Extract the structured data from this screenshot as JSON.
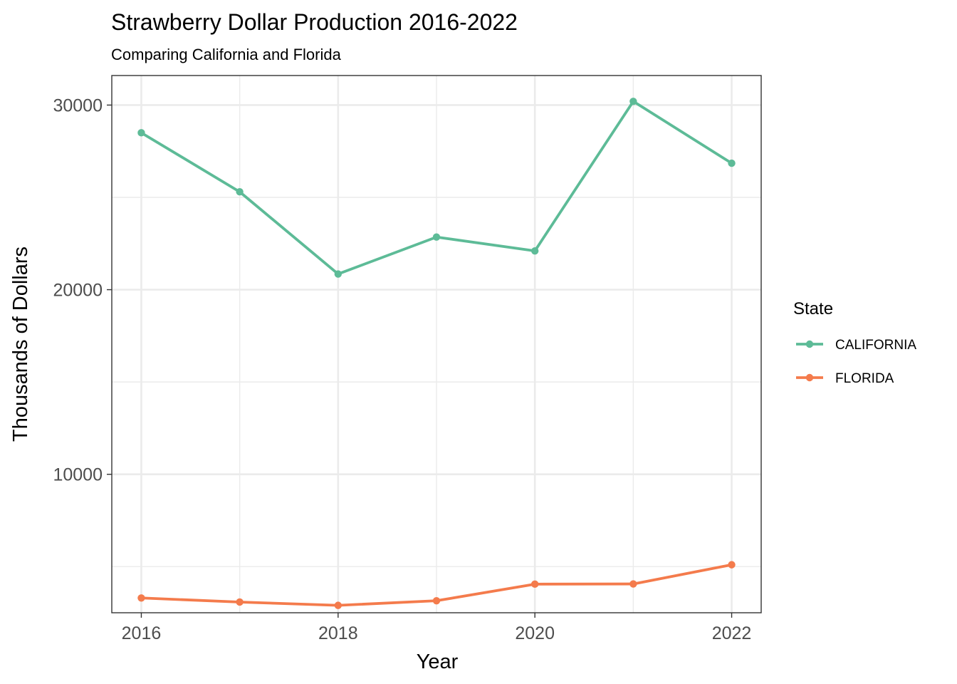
{
  "chart_data": {
    "type": "line",
    "title": "Strawberry Dollar Production 2016-2022",
    "subtitle": "Comparing California and Florida",
    "xlabel": "Year",
    "ylabel": "Thousands of Dollars",
    "x": [
      2016,
      2017,
      2018,
      2019,
      2020,
      2021,
      2022
    ],
    "x_ticks": [
      "2016",
      "2018",
      "2020",
      "2022"
    ],
    "y_ticks": [
      "10000",
      "20000",
      "30000"
    ],
    "xlim": [
      2015.7,
      2022.3
    ],
    "ylim": [
      2500,
      31600
    ],
    "grid": true,
    "legend": {
      "title": "State",
      "position": "right"
    },
    "series": [
      {
        "name": "CALIFORNIA",
        "color": "#5dbb97",
        "values": [
          28500,
          25300,
          20850,
          22850,
          22100,
          30200,
          26850
        ]
      },
      {
        "name": "FLORIDA",
        "color": "#f47b4c",
        "values": [
          3300,
          3080,
          2900,
          3150,
          4050,
          4060,
          5100
        ]
      }
    ]
  }
}
